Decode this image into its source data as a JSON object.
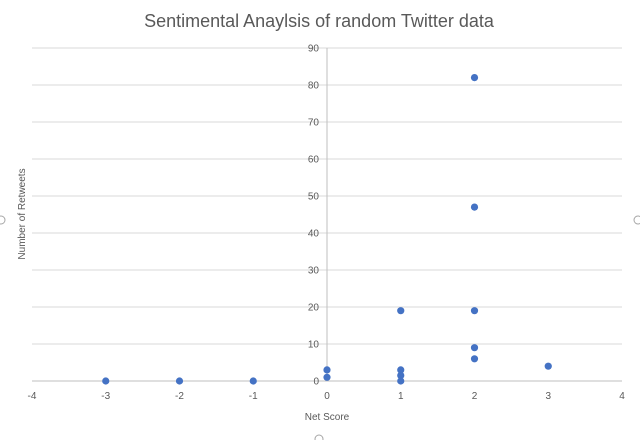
{
  "chart_data": {
    "type": "scatter",
    "title": "Sentimental Anaylsis of random Twitter data",
    "xlabel": "Net Score",
    "ylabel": "Number of Retweets",
    "xlim": [
      -4,
      4
    ],
    "ylim": [
      0,
      90
    ],
    "x_ticks": [
      -4,
      -3,
      -2,
      -1,
      0,
      1,
      2,
      3,
      4
    ],
    "y_ticks": [
      0,
      10,
      20,
      30,
      40,
      50,
      60,
      70,
      80,
      90
    ],
    "grid": true,
    "legend": "none",
    "marker_color": "#4472C4",
    "points": [
      {
        "x": -3,
        "y": 0
      },
      {
        "x": -2,
        "y": 0
      },
      {
        "x": -1,
        "y": 0
      },
      {
        "x": 0,
        "y": 3
      },
      {
        "x": 0,
        "y": 1
      },
      {
        "x": 1,
        "y": 19
      },
      {
        "x": 1,
        "y": 3
      },
      {
        "x": 1,
        "y": 1.5
      },
      {
        "x": 1,
        "y": 0
      },
      {
        "x": 2,
        "y": 82
      },
      {
        "x": 2,
        "y": 47
      },
      {
        "x": 2,
        "y": 19
      },
      {
        "x": 2,
        "y": 9
      },
      {
        "x": 2,
        "y": 6
      },
      {
        "x": 3,
        "y": 4
      }
    ]
  }
}
